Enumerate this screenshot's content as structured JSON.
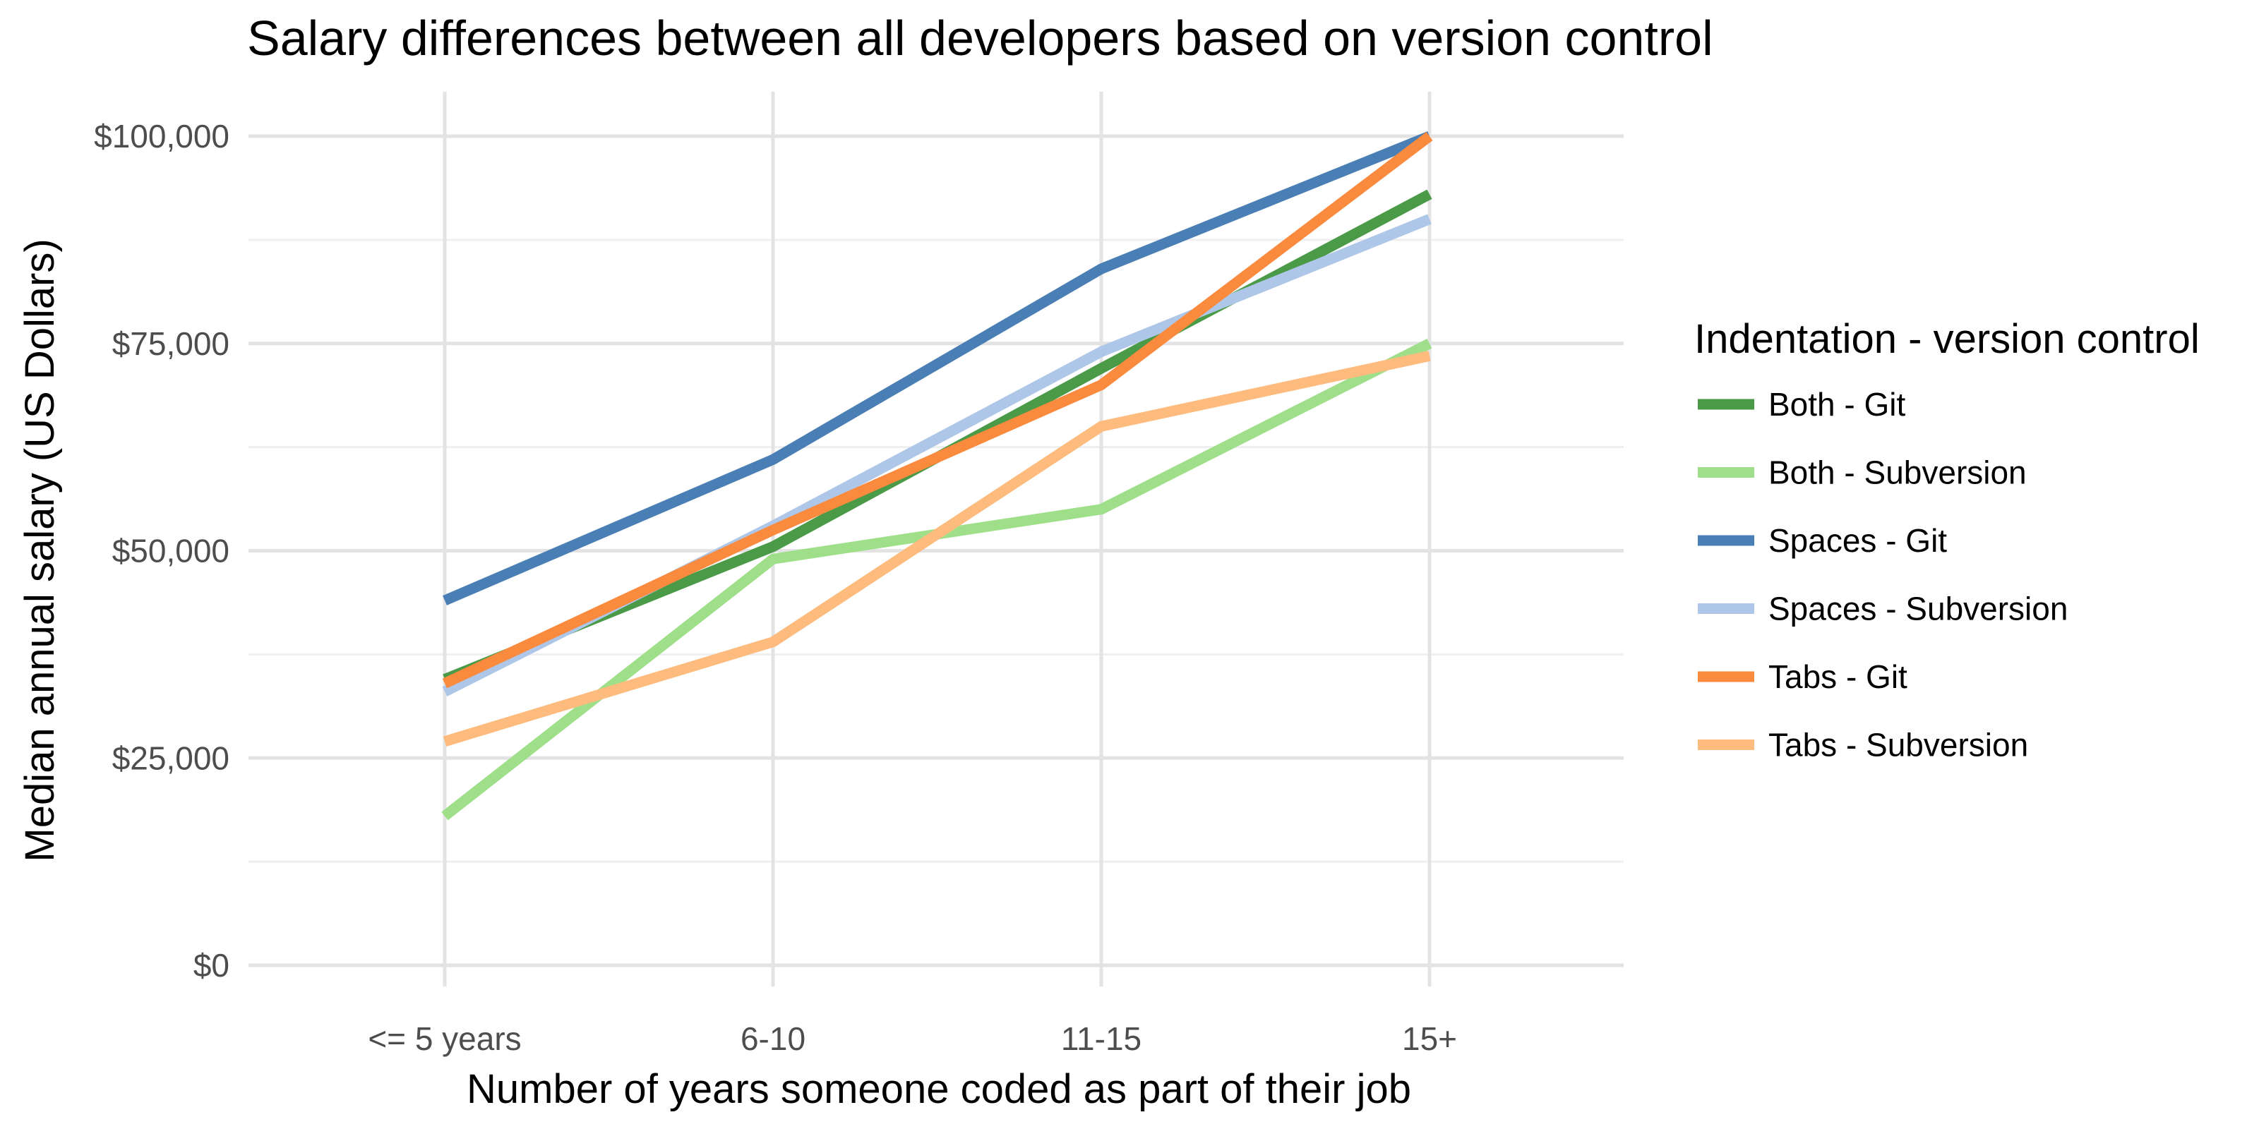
{
  "chart_data": {
    "type": "line",
    "title": "Salary differences between all developers based on version control",
    "xlabel": "Number of years someone coded as part of their job",
    "ylabel": "Median annual salary (US Dollars)",
    "categories": [
      "<= 5 years",
      "6-10",
      "11-15",
      "15+"
    ],
    "ylim": [
      0,
      100000
    ],
    "y_ticks": [
      0,
      25000,
      50000,
      75000,
      100000
    ],
    "y_tick_labels": [
      "$0",
      "$25,000",
      "$50,000",
      "$75,000",
      "$100,000"
    ],
    "grid": true,
    "legend": {
      "title": "Indentation - version control",
      "position": "right"
    },
    "series": [
      {
        "name": "Both - Git",
        "color": "#4a9a47",
        "values": [
          34500,
          50500,
          72000,
          93000
        ]
      },
      {
        "name": "Both - Subversion",
        "color": "#9fdf8a",
        "values": [
          18000,
          49000,
          55000,
          75000
        ]
      },
      {
        "name": "Spaces - Git",
        "color": "#4a7fb6",
        "values": [
          44000,
          61000,
          84000,
          100000
        ]
      },
      {
        "name": "Spaces - Subversion",
        "color": "#aec7e8",
        "values": [
          33000,
          53000,
          74000,
          90000
        ]
      },
      {
        "name": "Tabs - Git",
        "color": "#f98a3e",
        "values": [
          34000,
          52500,
          70000,
          100000
        ]
      },
      {
        "name": "Tabs - Subversion",
        "color": "#fdbb7d",
        "values": [
          27000,
          39000,
          65000,
          73500
        ]
      }
    ]
  }
}
